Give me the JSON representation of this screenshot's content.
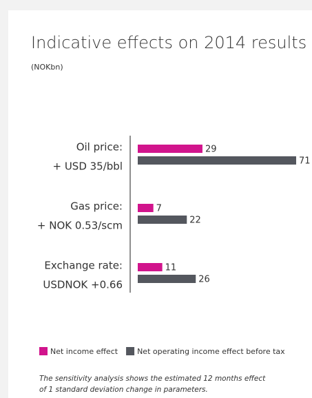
{
  "chart_data": {
    "type": "bar",
    "orientation": "horizontal",
    "title": "Indicative effects on 2014 results",
    "subtitle": "(NOKbn)",
    "categories": [
      [
        "Oil price:",
        "+ USD 35/bbl"
      ],
      [
        "Gas price:",
        "+ NOK 0.53/scm"
      ],
      [
        "Exchange rate:",
        "USDNOK +0.66"
      ]
    ],
    "series": [
      {
        "name": "Net income effect",
        "color": "#d1148c",
        "values": [
          29,
          7,
          11
        ]
      },
      {
        "name": "Net operating income effect before tax",
        "color": "#54575e",
        "values": [
          71,
          22,
          26
        ]
      }
    ],
    "footnote": [
      "The sensitivity analysis shows the estimated 12 months effect",
      "of 1 standard deviation change in parameters."
    ]
  }
}
